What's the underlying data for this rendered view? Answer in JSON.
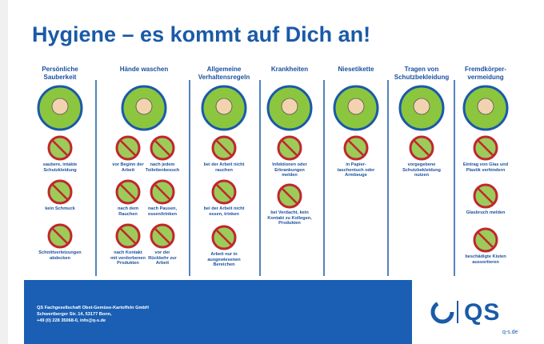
{
  "title": "Hygiene – es kommt auf Dich an!",
  "columns": [
    {
      "heading": "Persönliche Sauberkeit",
      "items": [
        "saubere, intakte Schutzkleidung",
        "kein Schmuck",
        "Schnittverletzungen abdecken"
      ]
    },
    {
      "heading": "Hände waschen",
      "items": [
        "vor Beginn der Arbeit",
        "nach jedem Toilettenbesuch",
        "nach dem Rauchen",
        "nach Pausen, essen/trinken",
        "nach Kontakt mit verdorbenen Produkten",
        "vor der Rückkehr zur Arbeit"
      ]
    },
    {
      "heading": "Allgemeine Verhaltensregeln",
      "items": [
        "bei der Arbeit nicht rauchen",
        "bei der Arbeit nicht essen, trinken",
        "Arbeit nur in ausgewiesenen Bereichen"
      ]
    },
    {
      "heading": "Krankheiten",
      "items": [
        "Infektionen oder Erkrankungen melden",
        "bei Verdacht, kein Kontakt zu Kollegen, Produkten"
      ]
    },
    {
      "heading": "Niesetikette",
      "items": [
        "in Papier-taschentuch oder Armbeuge"
      ]
    },
    {
      "heading": "Tragen von Schutzbekleidung",
      "items": [
        "vorgegebene Schutzbekleidung nutzen"
      ]
    },
    {
      "heading": "Fremdkörper-vermeidung",
      "items": [
        "Eintrag von Glas und Plastik verhindern",
        "Glasbruch melden",
        "beschädigte Kisten aussortieren"
      ]
    }
  ],
  "footer": {
    "lines": [
      "QS Fachgesellschaft Obst-Gemüse-Kartoffeln GmbH",
      "Schwertberger Str. 14, 53177 Bonn,",
      "+49 (0) 228 35068-0, info@q-s.de"
    ]
  },
  "logo": {
    "text": "QS",
    "url": "q-s.de"
  }
}
